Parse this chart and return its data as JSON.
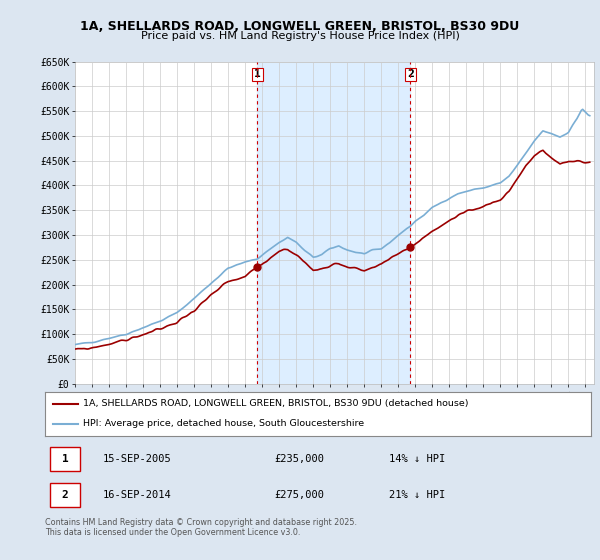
{
  "title_line1": "1A, SHELLARDS ROAD, LONGWELL GREEN, BRISTOL, BS30 9DU",
  "title_line2": "Price paid vs. HM Land Registry's House Price Index (HPI)",
  "ylabel_ticks": [
    "£0",
    "£50K",
    "£100K",
    "£150K",
    "£200K",
    "£250K",
    "£300K",
    "£350K",
    "£400K",
    "£450K",
    "£500K",
    "£550K",
    "£600K",
    "£650K"
  ],
  "ytick_values": [
    0,
    50000,
    100000,
    150000,
    200000,
    250000,
    300000,
    350000,
    400000,
    450000,
    500000,
    550000,
    600000,
    650000
  ],
  "hpi_color": "#7aaed4",
  "price_color": "#9b0000",
  "vline_color": "#cc0000",
  "shade_color": "#ddeeff",
  "background_color": "#dce6f1",
  "plot_bg_color": "#ffffff",
  "grid_color": "#cccccc",
  "transaction1_date": "15-SEP-2005",
  "transaction1_price": 235000,
  "transaction1_label": "14% ↓ HPI",
  "transaction2_date": "16-SEP-2014",
  "transaction2_price": 275000,
  "transaction2_label": "21% ↓ HPI",
  "legend_label_red": "1A, SHELLARDS ROAD, LONGWELL GREEN, BRISTOL, BS30 9DU (detached house)",
  "legend_label_blue": "HPI: Average price, detached house, South Gloucestershire",
  "footnote": "Contains HM Land Registry data © Crown copyright and database right 2025.\nThis data is licensed under the Open Government Licence v3.0.",
  "vline1_x": 2005.71,
  "vline2_x": 2014.71,
  "marker1_price_y": 235000,
  "marker2_price_y": 275000,
  "xmin": 1995,
  "xmax": 2025.5,
  "ymin": 0,
  "ymax": 650000
}
